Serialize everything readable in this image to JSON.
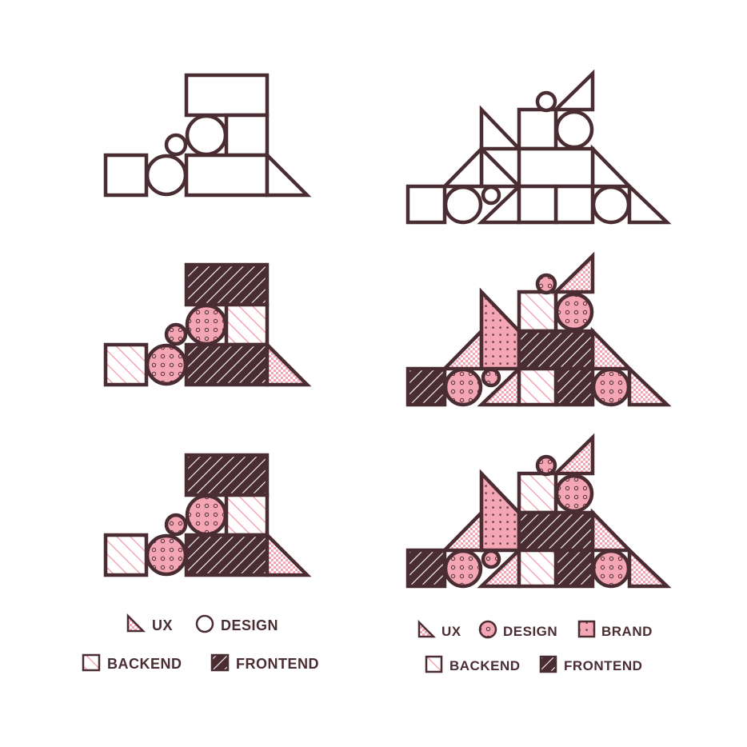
{
  "colors": {
    "stroke": "#4a2d33",
    "pink": "#f4a6b4",
    "white": "#ffffff"
  },
  "legend_left": {
    "ux": "UX",
    "design": "DESIGN",
    "backend": "BACKEND",
    "frontend": "FRONTEND"
  },
  "legend_right": {
    "ux": "UX",
    "design": "DESIGN",
    "brand": "BRAND",
    "backend": "BACKEND",
    "frontend": "FRONTEND"
  },
  "icons": {
    "ux": "pink-triangle-icon",
    "design": "circle-icon",
    "brand": "dotted-square-icon",
    "backend": "pink-hatched-square-icon",
    "frontend": "dark-hatched-square-icon"
  }
}
